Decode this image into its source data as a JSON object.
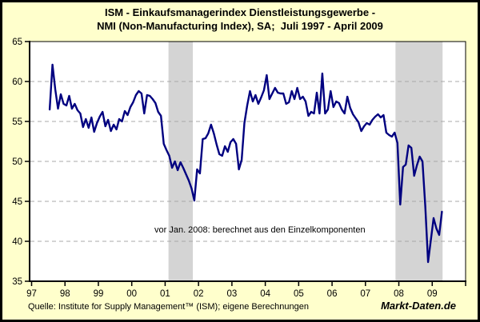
{
  "title": {
    "line1": "ISM - Einkaufsmanagerindex Dienstleistungsgewerbe -",
    "line2": "NMI (Non-Manufacturing Index), SA;  Juli 1997 - April 2009"
  },
  "annotation": "vor Jan. 2008: berechnet aus den Einzelkomponenten",
  "footer": {
    "source": "Quelle: Institute for Supply Management™ (ISM); eigene Berechnungen",
    "brand": "Markt-Daten.de"
  },
  "colors": {
    "background": "#FFFFCC",
    "plot_background": "#FFFFFF",
    "line": "#000080",
    "recession_band": "#D4D4D4",
    "gridline": "#A8A8A8",
    "axis": "#000000",
    "text": "#000000"
  },
  "chart_data": {
    "type": "line",
    "title": "ISM - Einkaufsmanagerindex Dienstleistungsgewerbe - NMI (Non-Manufacturing Index), SA; Juli 1997 - April 2009",
    "frequency": "monthly",
    "start": "1997-07",
    "end": "2009-04",
    "xlim": [
      1996.94,
      2010.0
    ],
    "ylim": [
      35,
      65
    ],
    "yticks": [
      35,
      40,
      45,
      50,
      55,
      60,
      65
    ],
    "xticks": [
      {
        "t": 1997,
        "label": "97"
      },
      {
        "t": 1998,
        "label": "98"
      },
      {
        "t": 1999,
        "label": "99"
      },
      {
        "t": 2000,
        "label": "00"
      },
      {
        "t": 2001,
        "label": "01"
      },
      {
        "t": 2002,
        "label": "02"
      },
      {
        "t": 2003,
        "label": "03"
      },
      {
        "t": 2004,
        "label": "04"
      },
      {
        "t": 2005,
        "label": "05"
      },
      {
        "t": 2006,
        "label": "06"
      },
      {
        "t": 2007,
        "label": "07"
      },
      {
        "t": 2008,
        "label": "08"
      },
      {
        "t": 2009,
        "label": "09"
      },
      {
        "t": 2010,
        "label": ""
      }
    ],
    "recession_bands": [
      {
        "from": 2001.1,
        "to": 2001.83
      },
      {
        "from": 2007.9,
        "to": 2009.31
      }
    ],
    "grid": "horizontal dashed at 40,45,50,55,60",
    "legend": "none",
    "values": [
      56.5,
      62.1,
      59.0,
      56.6,
      58.4,
      57.2,
      57.0,
      58.2,
      56.6,
      57.2,
      56.4,
      56.0,
      54.3,
      55.3,
      54.2,
      55.5,
      53.7,
      54.8,
      55.6,
      56.2,
      54.4,
      55.2,
      53.8,
      54.6,
      54.0,
      55.3,
      55.0,
      56.3,
      55.8,
      56.8,
      57.4,
      58.3,
      58.8,
      58.5,
      56.0,
      58.3,
      58.2,
      57.8,
      57.3,
      56.2,
      55.7,
      52.2,
      51.4,
      50.7,
      49.2,
      50.0,
      48.9,
      49.9,
      49.2,
      48.4,
      47.6,
      46.6,
      45.1,
      49.0,
      48.5,
      52.8,
      52.9,
      53.5,
      54.6,
      53.5,
      52.1,
      50.9,
      50.7,
      51.9,
      51.2,
      52.4,
      52.8,
      52.2,
      49.0,
      50.2,
      54.8,
      57.0,
      58.8,
      57.5,
      58.3,
      57.2,
      58.0,
      58.9,
      60.8,
      57.8,
      58.5,
      59.2,
      58.6,
      58.5,
      58.5,
      57.2,
      57.4,
      58.8,
      57.8,
      59.2,
      57.8,
      58.1,
      57.5,
      55.7,
      56.2,
      56.0,
      58.6,
      56.0,
      61.0,
      56.0,
      56.5,
      58.8,
      56.8,
      57.5,
      57.3,
      56.5,
      56.0,
      58.1,
      56.7,
      55.9,
      55.4,
      54.9,
      53.8,
      54.4,
      54.8,
      54.6,
      55.2,
      55.6,
      55.9,
      55.5,
      55.8,
      53.6,
      53.3,
      53.1,
      53.6,
      52.3,
      44.6,
      49.3,
      49.6,
      52.0,
      51.7,
      48.2,
      49.5,
      50.6,
      50.0,
      44.4,
      37.4,
      40.1,
      42.9,
      41.6,
      40.8,
      43.7
    ]
  }
}
